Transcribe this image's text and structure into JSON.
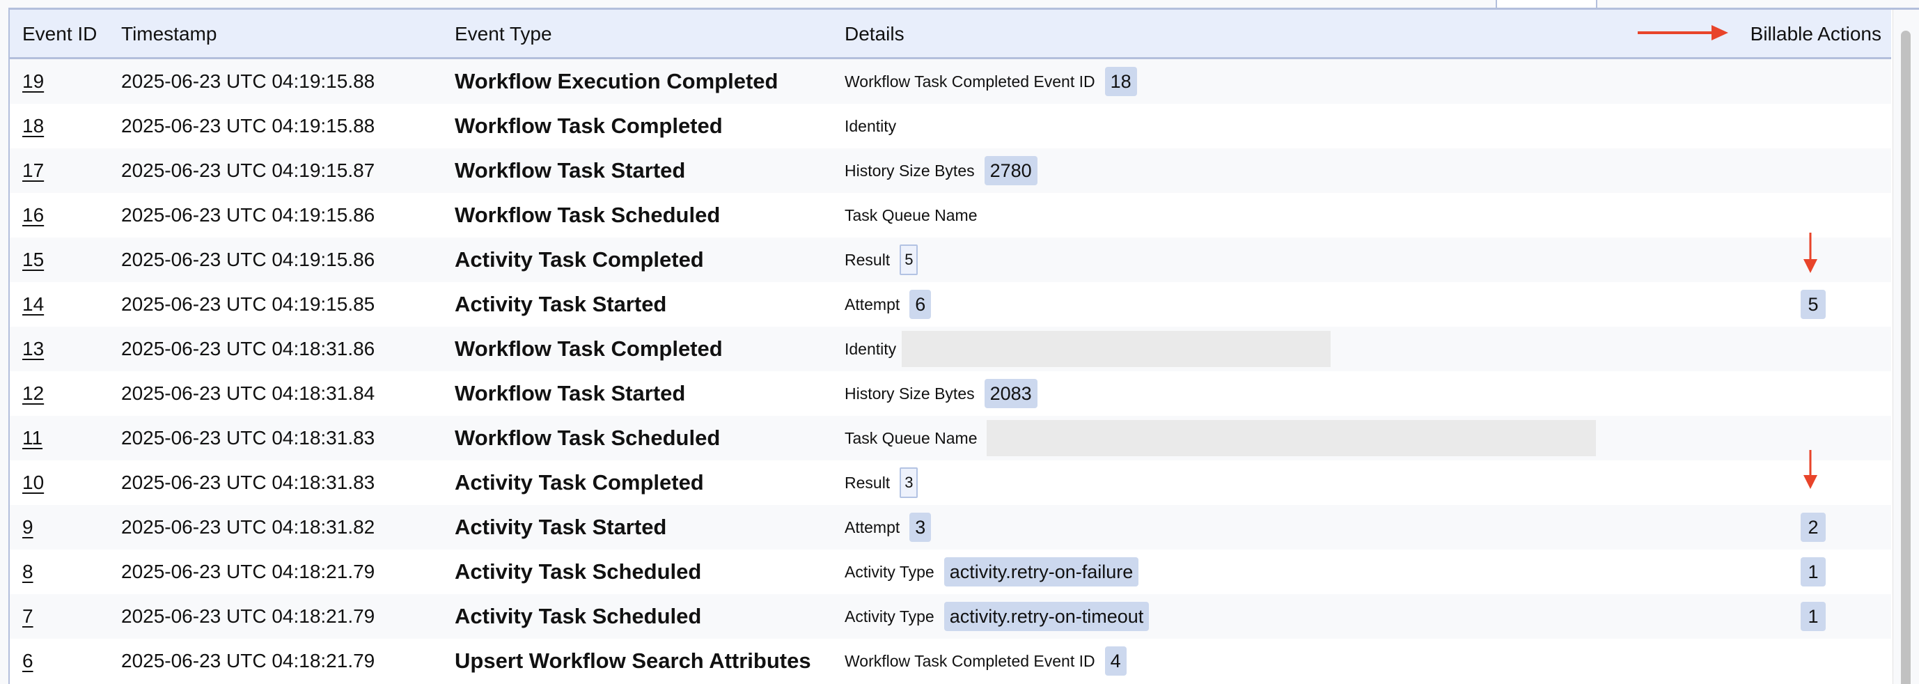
{
  "header": {
    "event_id": "Event ID",
    "timestamp": "Timestamp",
    "event_type": "Event Type",
    "details": "Details",
    "billable_actions": "Billable Actions"
  },
  "annotation_color": "#e8442a",
  "rows": [
    {
      "id": "19",
      "timestamp": "2025-06-23 UTC 04:19:15.88",
      "type": "Workflow Execution Completed",
      "label": "Workflow Task Completed Event ID",
      "value": "18",
      "style": "chip",
      "billable": ""
    },
    {
      "id": "18",
      "timestamp": "2025-06-23 UTC 04:19:15.88",
      "type": "Workflow Task Completed",
      "label": "Identity",
      "value": "",
      "style": "none",
      "billable": ""
    },
    {
      "id": "17",
      "timestamp": "2025-06-23 UTC 04:19:15.87",
      "type": "Workflow Task Started",
      "label": "History Size Bytes",
      "value": "2780",
      "style": "chip",
      "billable": ""
    },
    {
      "id": "16",
      "timestamp": "2025-06-23 UTC 04:19:15.86",
      "type": "Workflow Task Scheduled",
      "label": "Task Queue Name",
      "value": "",
      "style": "none",
      "billable": ""
    },
    {
      "id": "15",
      "timestamp": "2025-06-23 UTC 04:19:15.86",
      "type": "Activity Task Completed",
      "label": "Result",
      "value": "5",
      "style": "outline",
      "billable": ""
    },
    {
      "id": "14",
      "timestamp": "2025-06-23 UTC 04:19:15.85",
      "type": "Activity Task Started",
      "label": "Attempt",
      "value": "6",
      "style": "chip",
      "billable": "5"
    },
    {
      "id": "13",
      "timestamp": "2025-06-23 UTC 04:18:31.86",
      "type": "Workflow Task Completed",
      "label": "Identity",
      "value": "",
      "style": "redacted-short",
      "billable": ""
    },
    {
      "id": "12",
      "timestamp": "2025-06-23 UTC 04:18:31.84",
      "type": "Workflow Task Started",
      "label": "History Size Bytes",
      "value": "2083",
      "style": "chip",
      "billable": ""
    },
    {
      "id": "11",
      "timestamp": "2025-06-23 UTC 04:18:31.83",
      "type": "Workflow Task Scheduled",
      "label": "Task Queue Name",
      "value": "",
      "style": "redacted-long",
      "billable": ""
    },
    {
      "id": "10",
      "timestamp": "2025-06-23 UTC 04:18:31.83",
      "type": "Activity Task Completed",
      "label": "Result",
      "value": "3",
      "style": "outline",
      "billable": ""
    },
    {
      "id": "9",
      "timestamp": "2025-06-23 UTC 04:18:31.82",
      "type": "Activity Task Started",
      "label": "Attempt",
      "value": "3",
      "style": "chip",
      "billable": "2"
    },
    {
      "id": "8",
      "timestamp": "2025-06-23 UTC 04:18:21.79",
      "type": "Activity Task Scheduled",
      "label": "Activity Type",
      "value": "activity.retry-on-failure",
      "style": "chip",
      "billable": "1"
    },
    {
      "id": "7",
      "timestamp": "2025-06-23 UTC 04:18:21.79",
      "type": "Activity Task Scheduled",
      "label": "Activity Type",
      "value": "activity.retry-on-timeout",
      "style": "chip",
      "billable": "1"
    },
    {
      "id": "6",
      "timestamp": "2025-06-23 UTC 04:18:21.79",
      "type": "Upsert Workflow Search Attributes",
      "label": "Workflow Task Completed Event ID",
      "value": "4",
      "style": "chip",
      "billable": ""
    }
  ]
}
